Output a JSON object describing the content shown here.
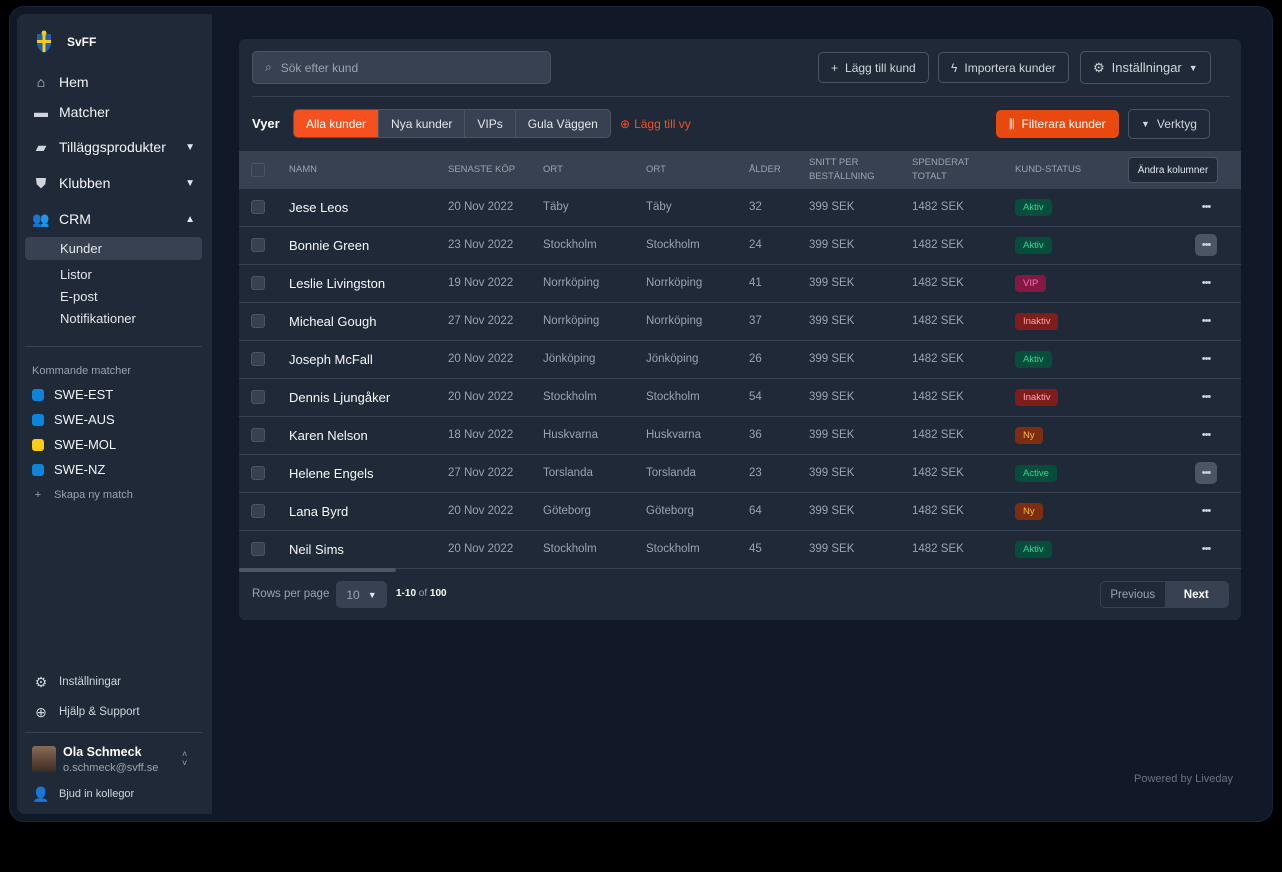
{
  "brand": {
    "name": "SvFF"
  },
  "nav": [
    {
      "label": "Hem",
      "icon": "home-icon"
    },
    {
      "label": "Matcher",
      "icon": "ticket-icon"
    },
    {
      "label": "Tilläggsprodukter",
      "icon": "bag-icon"
    },
    {
      "label": "Klubben",
      "icon": "shield-icon"
    },
    {
      "label": "CRM",
      "icon": "users-icon"
    }
  ],
  "crm_sub": [
    "Kunder",
    "Listor",
    "E-post",
    "Notifikationer"
  ],
  "matches": {
    "title": "Kommande matcher",
    "items": [
      {
        "label": "SWE-EST",
        "color": "#0b84d9"
      },
      {
        "label": "SWE-AUS",
        "color": "#0b84d9"
      },
      {
        "label": "SWE-MOL",
        "color": "#facc15"
      },
      {
        "label": "SWE-NZ",
        "color": "#0b84d9"
      }
    ],
    "create": "Skapa ny match"
  },
  "footer_nav": {
    "settings": "Inställningar",
    "help": "Hjälp & Support"
  },
  "user": {
    "name": "Ola Schmeck",
    "email": "o.schmeck@svff.se",
    "invite": "Bjud in kollegor"
  },
  "toolbar": {
    "search_placeholder": "Sök efter kund",
    "add": "Lägg till kund",
    "import": "Importera kunder",
    "settings": "Inställningar"
  },
  "views": {
    "label": "Vyer",
    "tabs": [
      "Alla kunder",
      "Nya kunder",
      "VIPs",
      "Gula Väggen"
    ],
    "add": "Lägg till vy",
    "filter": "Filterara kunder",
    "tools": "Verktyg"
  },
  "table": {
    "headers": {
      "name": "Namn",
      "last": "Senaste köp",
      "ort1": "Ort",
      "ort2": "Ort",
      "age": "Ålder",
      "avg1": "Snitt per",
      "avg2": "beställning",
      "spent1": "Spenderat",
      "spent2": "totalt",
      "status": "Kund-status",
      "columns": "Ändra kolumner"
    },
    "rows": [
      {
        "name": "Jese Leos",
        "date": "20 Nov 2022",
        "ort1": "Täby",
        "ort2": "Täby",
        "age": "32",
        "avg": "399 SEK",
        "total": "1482 SEK",
        "status": "Aktiv",
        "kind": "green"
      },
      {
        "name": "Bonnie Green",
        "date": "23 Nov 2022",
        "ort1": "Stockholm",
        "ort2": "Stockholm",
        "age": "24",
        "avg": "399 SEK",
        "total": "1482 SEK",
        "status": "Aktiv",
        "kind": "green",
        "hl": true
      },
      {
        "name": "Leslie Livingston",
        "date": "19 Nov 2022",
        "ort1": "Norrköping",
        "ort2": "Norrköping",
        "age": "41",
        "avg": "399 SEK",
        "total": "1482 SEK",
        "status": "VIP",
        "kind": "pink"
      },
      {
        "name": "Micheal Gough",
        "date": "27 Nov 2022",
        "ort1": "Norrköping",
        "ort2": "Norrköping",
        "age": "37",
        "avg": "399 SEK",
        "total": "1482 SEK",
        "status": "Inaktiv",
        "kind": "red"
      },
      {
        "name": "Joseph McFall",
        "date": "20 Nov 2022",
        "ort1": "Jönköping",
        "ort2": "Jönköping",
        "age": "26",
        "avg": "399 SEK",
        "total": "1482 SEK",
        "status": "Aktiv",
        "kind": "green"
      },
      {
        "name": "Dennis Ljungåker",
        "date": "20 Nov 2022",
        "ort1": "Stockholm",
        "ort2": "Stockholm",
        "age": "54",
        "avg": "399 SEK",
        "total": "1482 SEK",
        "status": "Inaktiv",
        "kind": "red"
      },
      {
        "name": "Karen Nelson",
        "date": "18 Nov 2022",
        "ort1": "Huskvarna",
        "ort2": "Huskvarna",
        "age": "36",
        "avg": "399 SEK",
        "total": "1482 SEK",
        "status": "Ny",
        "kind": "orange"
      },
      {
        "name": "Helene Engels",
        "date": "27 Nov 2022",
        "ort1": "Torslanda",
        "ort2": "Torslanda",
        "age": "23",
        "avg": "399 SEK",
        "total": "1482 SEK",
        "status": "Active",
        "kind": "green",
        "hl": true
      },
      {
        "name": "Lana Byrd",
        "date": "20 Nov 2022",
        "ort1": "Göteborg",
        "ort2": "Göteborg",
        "age": "64",
        "avg": "399 SEK",
        "total": "1482 SEK",
        "status": "Ny",
        "kind": "orange"
      },
      {
        "name": "Neil Sims",
        "date": "20 Nov 2022",
        "ort1": "Stockholm",
        "ort2": "Stockholm",
        "age": "45",
        "avg": "399 SEK",
        "total": "1482 SEK",
        "status": "Aktiv",
        "kind": "green"
      }
    ]
  },
  "pagination": {
    "rows_label": "Rows per page",
    "rows_value": "10",
    "range": "1-10",
    "of": "of",
    "total": "100",
    "prev": "Previous",
    "next": "Next"
  },
  "powered": "Powered by Liveday",
  "colors": {
    "accent": "#f4511e",
    "sidebar": "#1f2937",
    "bg": "#111827"
  }
}
